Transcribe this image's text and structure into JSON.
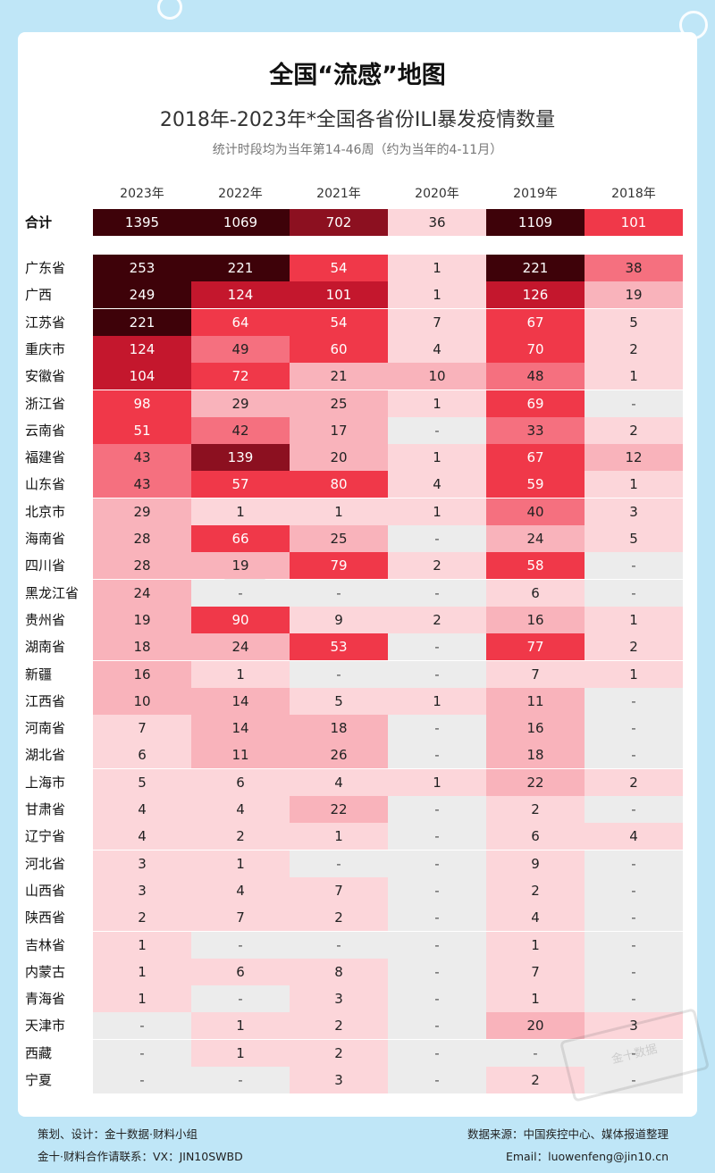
{
  "chart_data": {
    "type": "table",
    "title": "全国“流感”地图",
    "subtitle": "2018年-2023年*全国各省份ILI暴发疫情数量",
    "note": "统计时段均为当年第14-46周（约为当年的4-11月）",
    "columns": [
      "2023年",
      "2022年",
      "2021年",
      "2020年",
      "2019年",
      "2018年"
    ],
    "total": {
      "label": "合计",
      "values": [
        1395,
        1069,
        702,
        36,
        1109,
        101
      ]
    },
    "rows": [
      {
        "label": "广东省",
        "values": [
          253,
          221,
          54,
          1,
          221,
          38
        ]
      },
      {
        "label": "广西",
        "values": [
          249,
          124,
          101,
          1,
          126,
          19
        ]
      },
      {
        "label": "江苏省",
        "values": [
          221,
          64,
          54,
          7,
          67,
          5
        ]
      },
      {
        "label": "重庆市",
        "values": [
          124,
          49,
          60,
          4,
          70,
          2
        ]
      },
      {
        "label": "安徽省",
        "values": [
          104,
          72,
          21,
          10,
          48,
          1
        ]
      },
      {
        "label": "浙江省",
        "values": [
          98,
          29,
          25,
          1,
          69,
          null
        ]
      },
      {
        "label": "云南省",
        "values": [
          51,
          42,
          17,
          null,
          33,
          2
        ]
      },
      {
        "label": "福建省",
        "values": [
          43,
          139,
          20,
          1,
          67,
          12
        ]
      },
      {
        "label": "山东省",
        "values": [
          43,
          57,
          80,
          4,
          59,
          1
        ]
      },
      {
        "label": "北京市",
        "values": [
          29,
          1,
          1,
          1,
          40,
          3
        ]
      },
      {
        "label": "海南省",
        "values": [
          28,
          66,
          25,
          null,
          24,
          5
        ]
      },
      {
        "label": "四川省",
        "values": [
          28,
          19,
          79,
          2,
          58,
          null
        ]
      },
      {
        "label": "黑龙江省",
        "values": [
          24,
          null,
          null,
          null,
          6,
          null
        ]
      },
      {
        "label": "贵州省",
        "values": [
          19,
          90,
          9,
          2,
          16,
          1
        ]
      },
      {
        "label": "湖南省",
        "values": [
          18,
          24,
          53,
          null,
          77,
          2
        ]
      },
      {
        "label": "新疆",
        "values": [
          16,
          1,
          null,
          null,
          7,
          1
        ]
      },
      {
        "label": "江西省",
        "values": [
          10,
          14,
          5,
          1,
          11,
          null
        ]
      },
      {
        "label": "河南省",
        "values": [
          7,
          14,
          18,
          null,
          16,
          null
        ]
      },
      {
        "label": "湖北省",
        "values": [
          6,
          11,
          26,
          null,
          18,
          null
        ]
      },
      {
        "label": "上海市",
        "values": [
          5,
          6,
          4,
          1,
          22,
          2
        ]
      },
      {
        "label": "甘肃省",
        "values": [
          4,
          4,
          22,
          null,
          2,
          null
        ]
      },
      {
        "label": "辽宁省",
        "values": [
          4,
          2,
          1,
          null,
          6,
          4
        ]
      },
      {
        "label": "河北省",
        "values": [
          3,
          1,
          null,
          null,
          9,
          null
        ]
      },
      {
        "label": "山西省",
        "values": [
          3,
          4,
          7,
          null,
          2,
          null
        ]
      },
      {
        "label": "陕西省",
        "values": [
          2,
          7,
          2,
          null,
          4,
          null
        ]
      },
      {
        "label": "吉林省",
        "values": [
          1,
          null,
          null,
          null,
          1,
          null
        ]
      },
      {
        "label": "内蒙古",
        "values": [
          1,
          6,
          8,
          null,
          7,
          null
        ]
      },
      {
        "label": "青海省",
        "values": [
          1,
          null,
          3,
          null,
          1,
          null
        ]
      },
      {
        "label": "天津市",
        "values": [
          null,
          1,
          2,
          null,
          20,
          3
        ]
      },
      {
        "label": "西藏",
        "values": [
          null,
          1,
          2,
          null,
          null,
          null
        ]
      },
      {
        "label": "宁夏",
        "values": [
          null,
          null,
          3,
          null,
          2,
          null
        ]
      }
    ],
    "missing_symbol": "-"
  },
  "colors": {
    "empty": "#ececec",
    "lightest": "#fcd6da",
    "light": "#f9b3bb",
    "mid": "#f5707f",
    "strong": "#f03849",
    "deep": "#c4172d",
    "darker": "#8c1020",
    "darkest": "#3e0209"
  },
  "watermark": "金十数据",
  "footer": {
    "left1": "策划、设计：金十数据·财料小组",
    "left2": "金十·财料合作请联系：VX：JIN10SWBD",
    "right1": "数据来源：中国疾控中心、媒体报道整理",
    "right2": "Email：luowenfeng@jin10.cn"
  }
}
